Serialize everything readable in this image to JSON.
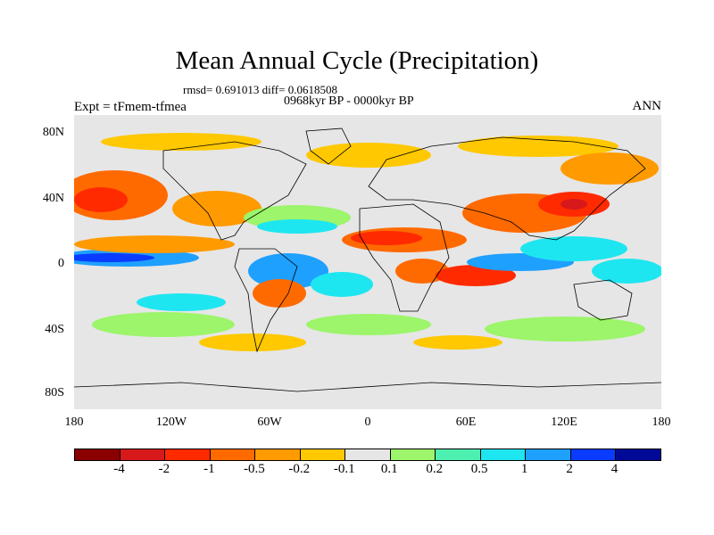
{
  "title": "Mean Annual Cycle (Precipitation)",
  "stats": "rmsd= 0.691013 diff= 0.0618508",
  "period": "0968kyr BP - 0000kyr BP",
  "expt": "Expt = tFmem-tfmea",
  "season": "ANN",
  "y_labels": [
    "80N",
    "40N",
    "0",
    "40S",
    "80S"
  ],
  "x_labels": [
    "180",
    "120W",
    "60W",
    "0",
    "60E",
    "120E",
    "180"
  ],
  "colorbar": {
    "labels": [
      "-4",
      "-2",
      "-1",
      "-0.5",
      "-0.2",
      "-0.1",
      "0.1",
      "0.2",
      "0.5",
      "1",
      "2",
      "4"
    ],
    "colors": [
      "#8b0000",
      "#d7191c",
      "#ff2a00",
      "#ff6a00",
      "#ff9a00",
      "#ffc800",
      "#e6e6e6",
      "#9cf56a",
      "#4df0b0",
      "#1ee6f0",
      "#1ea0ff",
      "#0a3cff",
      "#000a96"
    ]
  },
  "colors": {
    "land_bg": "#e6e6e6",
    "coast": "#000000"
  }
}
